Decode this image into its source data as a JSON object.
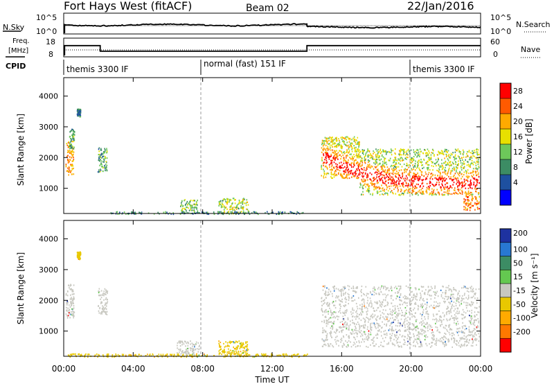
{
  "header": {
    "station": "Fort Hays West (fitACF)",
    "beam": "Beam 02",
    "date": "22/Jan/2016"
  },
  "noise_panel": {
    "left_label": "N.Sky",
    "right_label": "N.Search",
    "left_ticks": [
      "10^5",
      "10^0"
    ],
    "right_ticks": [
      "10^5",
      "10^0"
    ]
  },
  "freq_panel": {
    "left_label_1": "Freq.",
    "left_label_2": "[MHz]",
    "left_ticks": [
      "18",
      "8"
    ],
    "right_ticks": [
      "60",
      "0"
    ],
    "right_label": "Nave",
    "cpid_label": "CPID"
  },
  "cpid_segments": [
    {
      "label": "themis 3300 IF",
      "start_hour": 0
    },
    {
      "label": "normal (fast) 151 IF",
      "start_hour": 8
    },
    {
      "label": "themis 3300 IF",
      "start_hour": 20
    }
  ],
  "axes": {
    "y_label": "Slant Range [km]",
    "y_ticks": [
      "4000",
      "3000",
      "2000",
      "1000"
    ],
    "x_label": "Time UT",
    "x_ticks": [
      "00:00",
      "04:00",
      "08:00",
      "12:00",
      "16:00",
      "20:00",
      "00:00"
    ]
  },
  "power_scale": {
    "label": "Power [dB]",
    "ticks": [
      "28",
      "24",
      "20",
      "16",
      "12",
      "8",
      "4"
    ],
    "colors": [
      "#ff0000",
      "#ff5a00",
      "#ffaa00",
      "#e8e000",
      "#6dc85a",
      "#3c8c64",
      "#1e50a0",
      "#0000ff"
    ]
  },
  "velocity_scale": {
    "label": "Velocity [m s⁻¹]",
    "ticks": [
      "200",
      "100",
      "50",
      "15",
      "-15",
      "-50",
      "-100",
      "-200"
    ],
    "colors": [
      "#1e32a0",
      "#2878d2",
      "#3c8c64",
      "#64c850",
      "#c8c8c0",
      "#e8c800",
      "#ffaa00",
      "#ff7800",
      "#ff0000"
    ]
  },
  "chart_data": {
    "type": "heatmap",
    "x_range_hours": [
      0,
      24
    ],
    "y_range_km": [
      180,
      4600
    ],
    "power_scale_db": [
      0,
      32
    ],
    "velocity_scale_ms": [
      -250,
      250
    ],
    "power_echo_regions": [
      {
        "t0": 0.1,
        "t1": 0.55,
        "r0": 1450,
        "r1": 2550,
        "power_db": 22
      },
      {
        "t0": 0.3,
        "t1": 0.6,
        "r0": 2300,
        "r1": 3000,
        "power_db": 12
      },
      {
        "t0": 0.75,
        "t1": 0.95,
        "r0": 3350,
        "r1": 3600,
        "power_db": 8
      },
      {
        "t0": 1.95,
        "t1": 2.5,
        "r0": 1550,
        "r1": 2400,
        "power_db": 12
      },
      {
        "t0": 6.7,
        "t1": 7.7,
        "r0": 200,
        "r1": 650,
        "power_db": 14
      },
      {
        "t0": 8.9,
        "t1": 10.6,
        "r0": 200,
        "r1": 700,
        "power_db": 16
      },
      {
        "t0": 2.5,
        "t1": 13.8,
        "r0": 180,
        "r1": 260,
        "power_db": 10
      },
      {
        "t0": 14.8,
        "t1": 17.0,
        "r0": 1350,
        "r1": 2700,
        "power_db": 18
      },
      {
        "t0": 17.0,
        "t1": 23.9,
        "r0": 800,
        "r1": 2300,
        "power_db": 16
      },
      {
        "t0": 23.0,
        "t1": 23.9,
        "r0": 300,
        "r1": 800,
        "power_db": 24
      }
    ],
    "power_band_ridge": [
      {
        "t": 14.9,
        "r": 2050
      },
      {
        "t": 16.0,
        "r": 1750
      },
      {
        "t": 17.0,
        "r": 1550
      },
      {
        "t": 18.0,
        "r": 1400
      },
      {
        "t": 19.0,
        "r": 1300
      },
      {
        "t": 20.0,
        "r": 1250
      },
      {
        "t": 21.0,
        "r": 1220
      },
      {
        "t": 22.0,
        "r": 1200
      },
      {
        "t": 23.0,
        "r": 1150
      },
      {
        "t": 23.9,
        "r": 1250
      }
    ],
    "velocity_echo_regions": [
      {
        "t0": 0.1,
        "t1": 0.6,
        "r0": 1450,
        "r1": 2550,
        "velocity_ms": 0
      },
      {
        "t0": 0.75,
        "t1": 0.95,
        "r0": 3350,
        "r1": 3600,
        "velocity_ms": -30
      },
      {
        "t0": 1.95,
        "t1": 2.5,
        "r0": 1550,
        "r1": 2400,
        "velocity_ms": 0
      },
      {
        "t0": 6.5,
        "t1": 7.8,
        "r0": 250,
        "r1": 700,
        "velocity_ms": 0
      },
      {
        "t0": 8.9,
        "t1": 10.6,
        "r0": 200,
        "r1": 700,
        "velocity_ms": -40
      },
      {
        "t0": 14.8,
        "t1": 23.9,
        "r0": 500,
        "r1": 2500,
        "velocity_ms": 0
      },
      {
        "t0": 0.1,
        "t1": 14.0,
        "r0": 180,
        "r1": 280,
        "velocity_ms": -40
      }
    ],
    "cpid_transitions_hours": [
      8,
      20
    ],
    "tx_freq_mhz": [
      {
        "t0": 0,
        "t1": 2.1,
        "value": 14
      },
      {
        "t0": 2.1,
        "t1": 14.0,
        "value": 11
      },
      {
        "t0": 14.0,
        "t1": 24,
        "value": 14
      }
    ]
  }
}
